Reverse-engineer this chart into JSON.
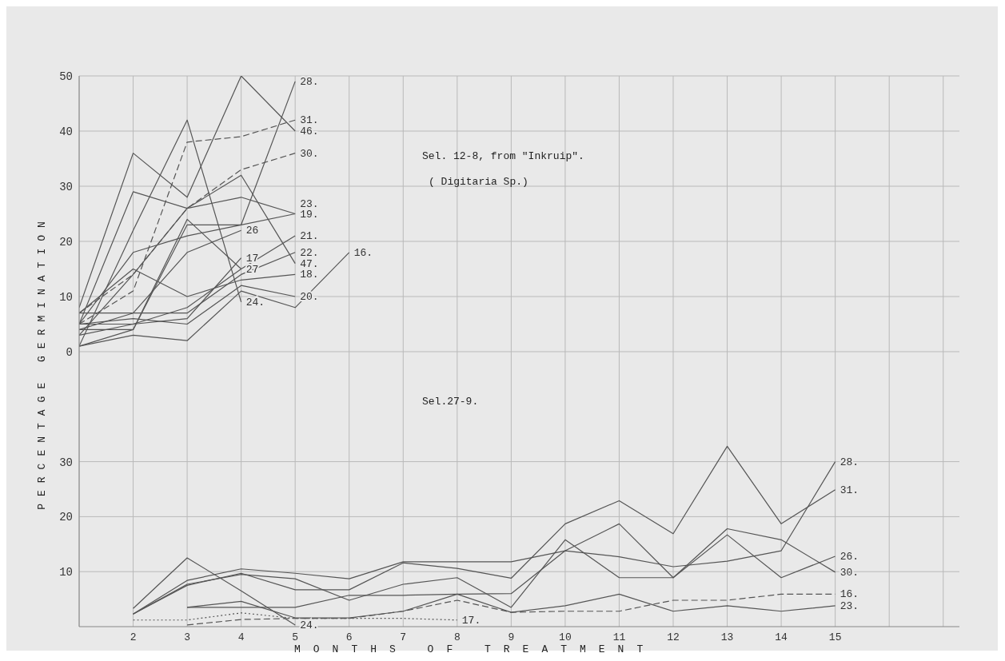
{
  "chart_data": [
    {
      "type": "line",
      "title": "Sel. 12-8, from \"Inkruip\".",
      "subtitle": "( Digitaria Sp.)",
      "ylabel": "PERCENTAGE GERMINATION",
      "xlim": [
        1,
        17.3
      ],
      "xticks": [
        {
          "value": 1,
          "label": null
        },
        2,
        3,
        4,
        5,
        6,
        7,
        8,
        9,
        10,
        11,
        12,
        13,
        14,
        15,
        {
          "value": 16,
          "label": null
        },
        {
          "value": 17,
          "label": null
        }
      ],
      "ylim": [
        0,
        50
      ],
      "yticks": [
        0,
        10,
        20,
        30,
        40,
        50
      ],
      "tick_labels": "y",
      "grid": true,
      "legend": false,
      "marker": "none",
      "x": [
        1,
        2,
        3,
        4,
        5
      ],
      "series": [
        {
          "name": "28.",
          "color": "#555555",
          "values": [
            1,
            4,
            23,
            23,
            49
          ]
        },
        {
          "name": "31.",
          "color": "#555555",
          "line_style": "dashed",
          "values": [
            5,
            11,
            38,
            39,
            42
          ]
        },
        {
          "name": "46.",
          "color": "#555555",
          "values": [
            8,
            36,
            28,
            50,
            40
          ]
        },
        {
          "name": "30.",
          "color": "#555555",
          "line_style": "dashed",
          "values": [
            7,
            14,
            26,
            33,
            36
          ]
        },
        {
          "name": "19.",
          "color": "#555555",
          "values": [
            5,
            29,
            26,
            28,
            25
          ]
        },
        {
          "name": "23.",
          "color": "#555555",
          "values": [
            5,
            18,
            21,
            23,
            25
          ]
        },
        {
          "name": "21.",
          "color": "#555555",
          "values": [
            3,
            5,
            8,
            15,
            21
          ]
        },
        {
          "name": "22.",
          "color": "#555555",
          "values": [
            4,
            7,
            7,
            14,
            18
          ]
        },
        {
          "name": "47.",
          "color": "#555555",
          "values": [
            3,
            14,
            26,
            32,
            16
          ]
        },
        {
          "name": "18.",
          "color": "#555555",
          "values": [
            7,
            15,
            10,
            13,
            14
          ]
        },
        {
          "name": "20.",
          "color": "#555555",
          "values": [
            5,
            6,
            5,
            12,
            10
          ]
        },
        {
          "name": "24.",
          "color": "#555555",
          "values": [
            1,
            22,
            42,
            9,
            null
          ]
        },
        {
          "name": "16.",
          "color": "#555555",
          "x": [
            1,
            2,
            3,
            4,
            5,
            6
          ],
          "values": [
            1,
            3,
            2,
            11,
            8,
            18
          ]
        },
        {
          "name": "17",
          "color": "#555555",
          "values": [
            5,
            5,
            6,
            17,
            null
          ]
        },
        {
          "name": "26",
          "color": "#555555",
          "values": [
            7,
            7,
            18,
            22,
            null
          ]
        },
        {
          "name": "27",
          "color": "#555555",
          "values": [
            4,
            4,
            24,
            15,
            null
          ]
        }
      ]
    },
    {
      "type": "line",
      "title": "Sel.27-9.",
      "xlabel": "MONTHS OF TREATMENT",
      "xlim": [
        1,
        17.3
      ],
      "xticks": [
        {
          "value": 1,
          "label": null
        },
        2,
        3,
        4,
        5,
        6,
        7,
        8,
        9,
        10,
        11,
        12,
        13,
        14,
        15,
        {
          "value": 16,
          "label": null
        },
        {
          "value": 17,
          "label": null
        }
      ],
      "ylim": [
        0,
        50
      ],
      "yticks": [
        10,
        20,
        30
      ],
      "grid": true,
      "legend": false,
      "marker": "none",
      "x": [
        2,
        3,
        4,
        5,
        6,
        7,
        8,
        9,
        10,
        11,
        12,
        13,
        14,
        15
      ],
      "series": [
        {
          "name": "28.",
          "color": "#555555",
          "values": [
            2.3,
            8.4,
            10.5,
            9.7,
            8.7,
            11.8,
            11.8,
            11.8,
            13.8,
            12.7,
            10.9,
            11.9,
            13.8,
            30
          ]
        },
        {
          "name": "31.",
          "color": "#555555",
          "values": [
            2.3,
            7.5,
            9.7,
            6.7,
            6.7,
            11.6,
            10.6,
            8.8,
            18.7,
            22.9,
            16.9,
            32.8,
            18.7,
            24.9
          ]
        },
        {
          "name": "26.",
          "color": "#555555",
          "values": [
            2.3,
            7.7,
            9.5,
            8.7,
            4.8,
            7.7,
            8.9,
            3.5,
            15.8,
            8.9,
            8.9,
            16.7,
            8.9,
            12.8
          ]
        },
        {
          "name": "30.",
          "color": "#555555",
          "values": [
            null,
            3.5,
            3.5,
            3.5,
            5.7,
            5.7,
            5.9,
            6,
            13.8,
            18.7,
            8.9,
            17.8,
            15.8,
            9.9
          ]
        },
        {
          "name": "16.",
          "color": "#555555",
          "line_style": "dashed",
          "values": [
            null,
            0.3,
            1.3,
            1.5,
            1.5,
            2.8,
            4.8,
            2.6,
            2.8,
            2.8,
            4.8,
            4.8,
            5.9,
            5.9
          ]
        },
        {
          "name": "23.",
          "color": "#555555",
          "values": [
            null,
            3.5,
            4.6,
            1.6,
            1.6,
            2.8,
            5.9,
            2.6,
            3.8,
            5.9,
            2.8,
            3.8,
            2.8,
            3.8
          ]
        },
        {
          "name": "24.",
          "color": "#555555",
          "values": [
            3.3,
            12.5,
            6.5,
            0.3,
            null,
            null,
            null,
            null,
            null,
            null,
            null,
            null,
            null,
            null
          ]
        },
        {
          "name": "17.",
          "color": "#555555",
          "line_style": "dotted",
          "values": [
            1.2,
            1.2,
            2.5,
            1.5,
            1.5,
            1.5,
            1.2,
            null,
            null,
            null,
            null,
            null,
            null,
            null
          ]
        }
      ]
    }
  ]
}
